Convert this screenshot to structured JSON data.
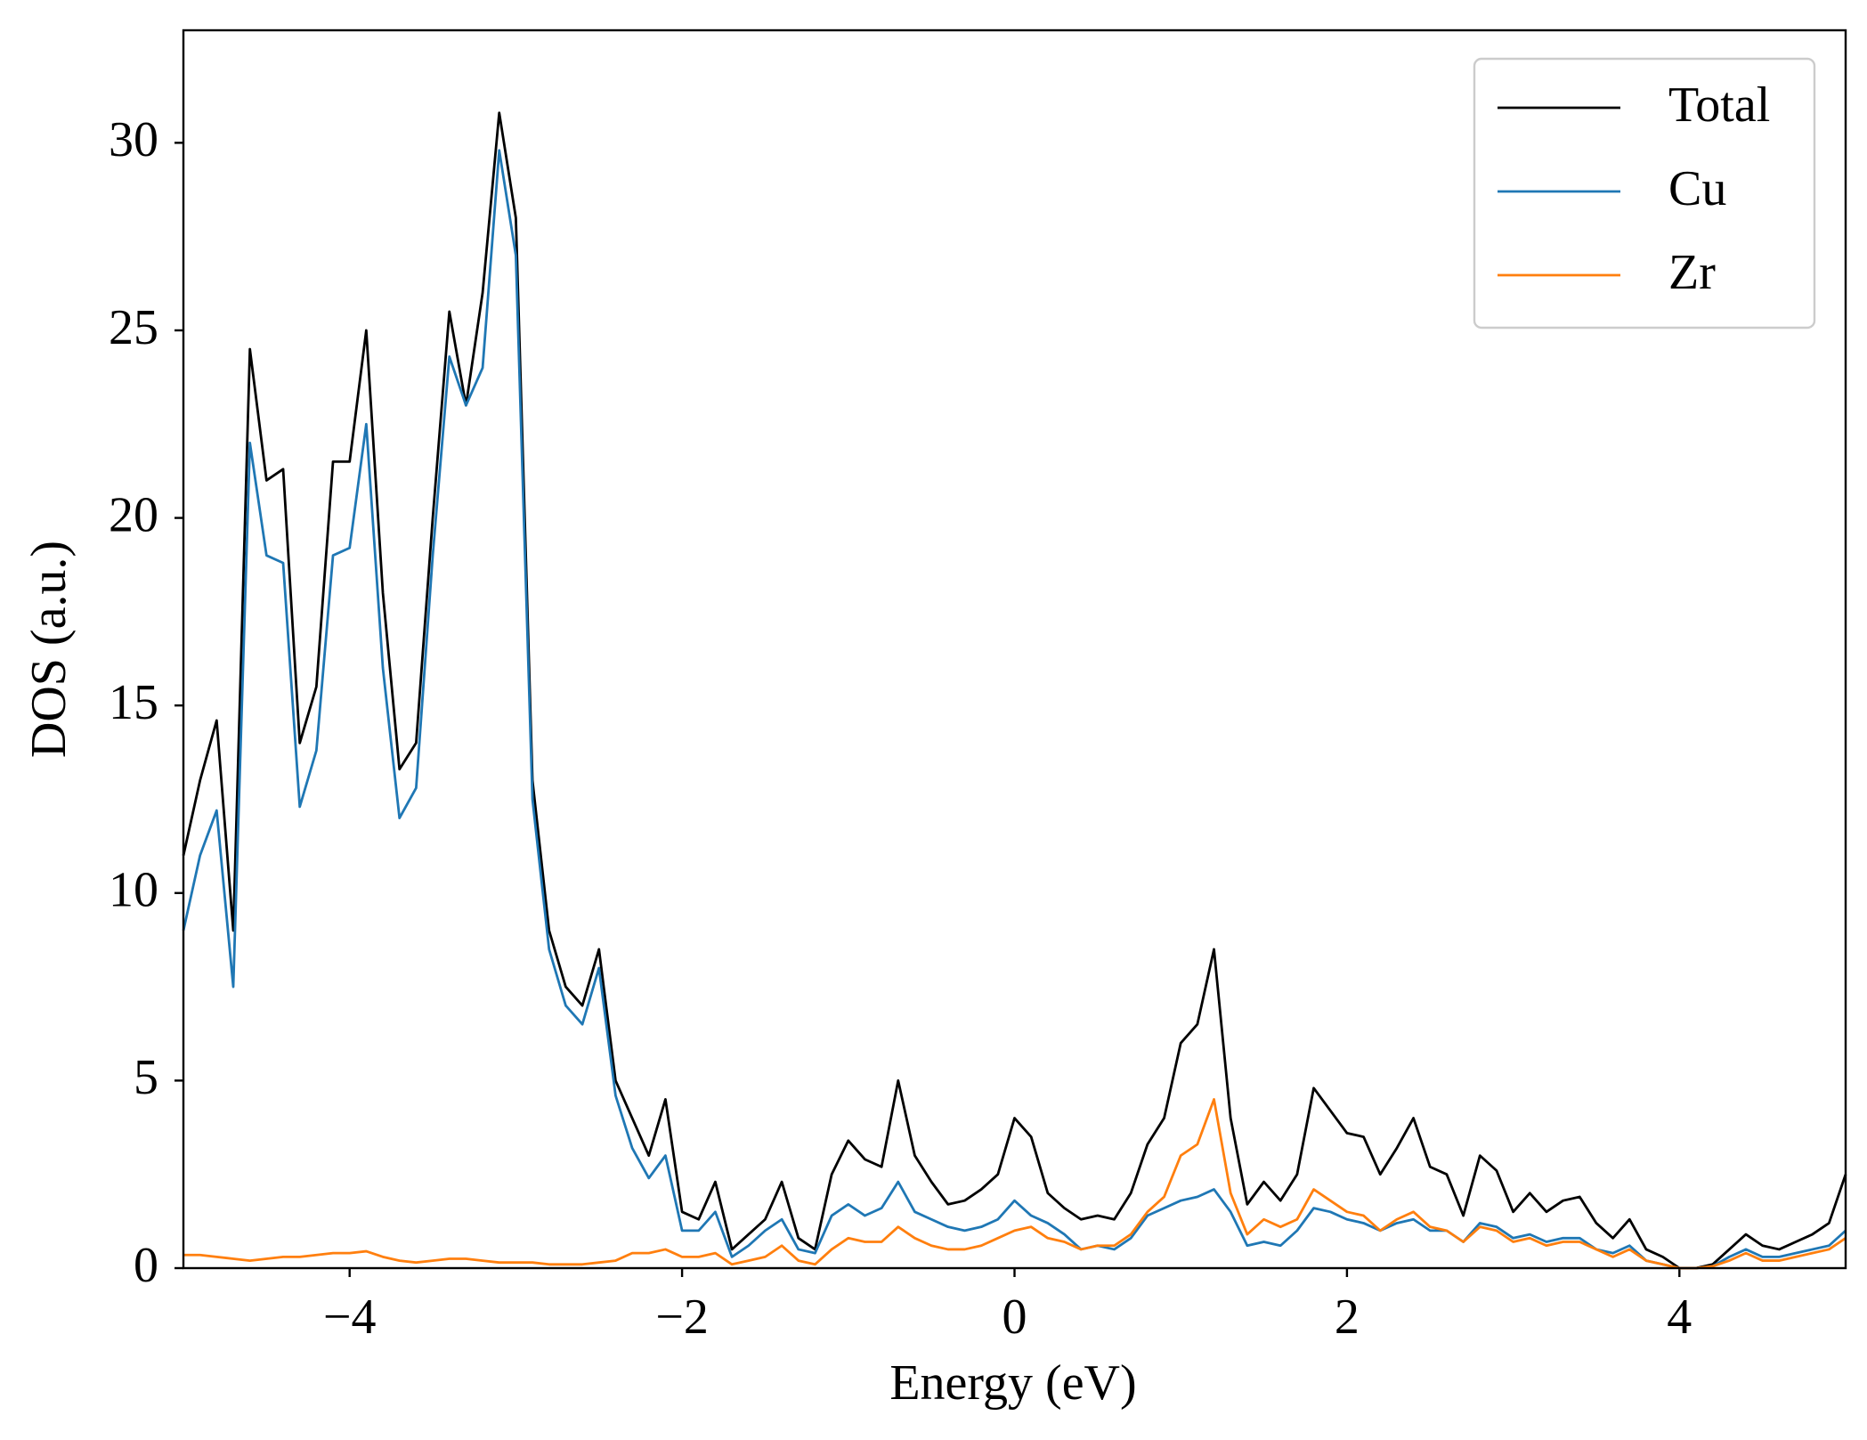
{
  "chart_data": {
    "type": "line",
    "xlabel": "Energy (eV)",
    "ylabel": "DOS (a.u.)",
    "xlim": [
      -5,
      5
    ],
    "ylim": [
      0,
      33
    ],
    "xticks": [
      {
        "value": -4,
        "label": "−4"
      },
      {
        "value": -2,
        "label": "−2"
      },
      0,
      2,
      4
    ],
    "yticks": [
      0,
      5,
      10,
      15,
      20,
      25,
      30
    ],
    "legend": "upper right",
    "x": [
      -5,
      -4.9,
      -4.8,
      -4.7,
      -4.6,
      -4.5,
      -4.4,
      -4.3,
      -4.2,
      -4.1,
      -4,
      -3.9,
      -3.8,
      -3.7,
      -3.6,
      -3.5,
      -3.4,
      -3.3,
      -3.2,
      -3.1,
      -3,
      -2.9,
      -2.8,
      -2.7,
      -2.6,
      -2.5,
      -2.4,
      -2.3,
      -2.2,
      -2.1,
      -2,
      -1.9,
      -1.8,
      -1.7,
      -1.6,
      -1.5,
      -1.4,
      -1.3,
      -1.2,
      -1.1,
      -1,
      -0.9,
      -0.8,
      -0.7,
      -0.6,
      -0.5,
      -0.4,
      -0.3,
      -0.2,
      -0.1,
      0,
      0.1,
      0.2,
      0.3,
      0.4,
      0.5,
      0.6,
      0.7,
      0.8,
      0.9,
      1,
      1.1,
      1.2,
      1.3,
      1.4,
      1.5,
      1.6,
      1.7,
      1.8,
      1.9,
      2,
      2.1,
      2.2,
      2.3,
      2.4,
      2.5,
      2.6,
      2.7,
      2.8,
      2.9,
      3,
      3.1,
      3.2,
      3.3,
      3.4,
      3.5,
      3.6,
      3.7,
      3.8,
      3.9,
      4,
      4.1,
      4.2,
      4.3,
      4.4,
      4.5,
      4.6,
      4.7,
      4.8,
      4.9,
      5
    ],
    "series": [
      {
        "name": "Total",
        "color": "#000000",
        "values": [
          11,
          13,
          14.6,
          9,
          24.5,
          21,
          21.3,
          14,
          15.5,
          21.5,
          21.5,
          25,
          18,
          13.3,
          14,
          20,
          25.5,
          23,
          26,
          30.8,
          28,
          13,
          9,
          7.5,
          7,
          8.5,
          5,
          4,
          3,
          4.5,
          1.5,
          1.3,
          2.3,
          0.5,
          0.9,
          1.3,
          2.3,
          0.8,
          0.5,
          2.5,
          3.4,
          2.9,
          2.7,
          5,
          3,
          2.3,
          1.7,
          1.8,
          2.1,
          2.5,
          4,
          3.5,
          2,
          1.6,
          1.3,
          1.4,
          1.3,
          2,
          3.3,
          4,
          6,
          6.5,
          8.5,
          4,
          1.7,
          2.3,
          1.8,
          2.5,
          4.8,
          4.2,
          3.6,
          3.5,
          2.5,
          3.2,
          4,
          2.7,
          2.5,
          1.4,
          3,
          2.6,
          1.5,
          2,
          1.5,
          1.8,
          1.9,
          1.2,
          0.8,
          1.3,
          0.5,
          0.3,
          0,
          0,
          0.1,
          0.5,
          0.9,
          0.6,
          0.5,
          0.7,
          0.9,
          1.2,
          2.5
        ]
      },
      {
        "name": "Cu",
        "color": "#1f77b4",
        "values": [
          9,
          11,
          12.2,
          7.5,
          22,
          19,
          18.8,
          12.3,
          13.8,
          19,
          19.2,
          22.5,
          16,
          12,
          12.8,
          19,
          24.3,
          23,
          24,
          29.8,
          27,
          12.5,
          8.5,
          7,
          6.5,
          8,
          4.6,
          3.2,
          2.4,
          3,
          1,
          1,
          1.5,
          0.3,
          0.6,
          1,
          1.3,
          0.5,
          0.4,
          1.4,
          1.7,
          1.4,
          1.6,
          2.3,
          1.5,
          1.3,
          1.1,
          1,
          1.1,
          1.3,
          1.8,
          1.4,
          1.2,
          0.9,
          0.5,
          0.6,
          0.5,
          0.8,
          1.4,
          1.6,
          1.8,
          1.9,
          2.1,
          1.5,
          0.6,
          0.7,
          0.6,
          1,
          1.6,
          1.5,
          1.3,
          1.2,
          1,
          1.2,
          1.3,
          1,
          1,
          0.7,
          1.2,
          1.1,
          0.8,
          0.9,
          0.7,
          0.8,
          0.8,
          0.5,
          0.4,
          0.6,
          0.2,
          0.1,
          0,
          0,
          0.05,
          0.3,
          0.5,
          0.3,
          0.3,
          0.4,
          0.5,
          0.6,
          1
        ]
      },
      {
        "name": "Zr",
        "color": "#ff7f0e",
        "values": [
          0.35,
          0.35,
          0.3,
          0.25,
          0.2,
          0.25,
          0.3,
          0.3,
          0.35,
          0.4,
          0.4,
          0.45,
          0.3,
          0.2,
          0.15,
          0.2,
          0.25,
          0.25,
          0.2,
          0.15,
          0.15,
          0.15,
          0.1,
          0.1,
          0.1,
          0.15,
          0.2,
          0.4,
          0.4,
          0.5,
          0.3,
          0.3,
          0.4,
          0.1,
          0.2,
          0.3,
          0.6,
          0.2,
          0.1,
          0.5,
          0.8,
          0.7,
          0.7,
          1.1,
          0.8,
          0.6,
          0.5,
          0.5,
          0.6,
          0.8,
          1,
          1.1,
          0.8,
          0.7,
          0.5,
          0.6,
          0.6,
          0.9,
          1.5,
          1.9,
          3,
          3.3,
          4.5,
          2,
          0.9,
          1.3,
          1.1,
          1.3,
          2.1,
          1.8,
          1.5,
          1.4,
          1,
          1.3,
          1.5,
          1.1,
          1,
          0.7,
          1.1,
          1,
          0.7,
          0.8,
          0.6,
          0.7,
          0.7,
          0.5,
          0.3,
          0.5,
          0.2,
          0.1,
          0,
          0,
          0.05,
          0.2,
          0.4,
          0.2,
          0.2,
          0.3,
          0.4,
          0.5,
          0.8
        ]
      }
    ]
  }
}
